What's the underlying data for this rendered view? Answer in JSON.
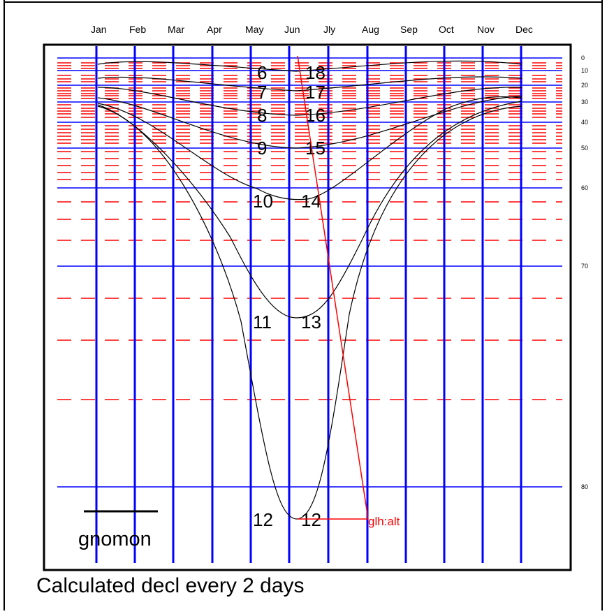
{
  "months": [
    "Jan",
    "Feb",
    "Mar",
    "Apr",
    "May",
    "Jun",
    "Jly",
    "Aug",
    "Sep",
    "Oct",
    "Nov",
    "Dec"
  ],
  "altitude_scale": [
    "0",
    "10",
    "20",
    "30",
    "40",
    "50",
    "60",
    "70",
    "80"
  ],
  "hour_labels": [
    {
      "am": "6",
      "pm": "18"
    },
    {
      "am": "7",
      "pm": "17"
    },
    {
      "am": "8",
      "pm": "16"
    },
    {
      "am": "9",
      "pm": "15"
    },
    {
      "am": "10",
      "pm": "14"
    },
    {
      "am": "11",
      "pm": "13"
    },
    {
      "am": "12",
      "pm": "12"
    }
  ],
  "gnomon_label": "gnomon",
  "pointer_label": "glh:alt",
  "caption": "Calculated decl every 2 days",
  "colors": {
    "month_lines": "#0000ff",
    "altitude_lines": "#0000ff",
    "dashed_lines": "#ff0000",
    "hour_curves": "#000000",
    "pointer": "#ff0000",
    "frame": "#000000"
  }
}
